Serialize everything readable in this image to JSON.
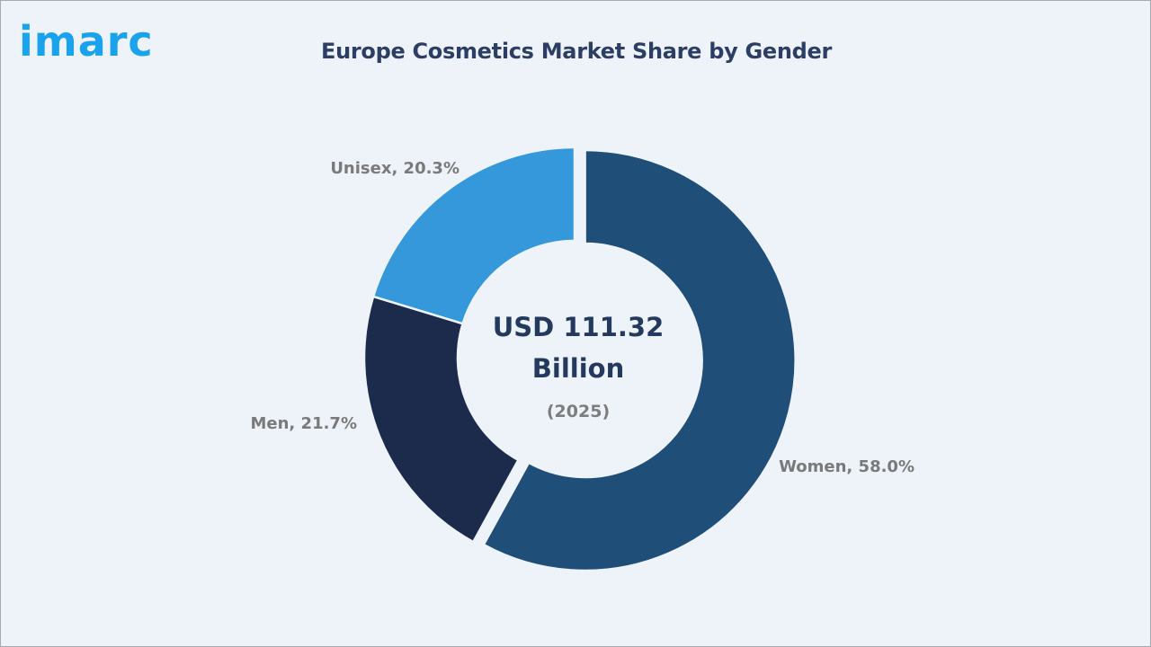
{
  "brand": {
    "logo_text": "imarc",
    "logo_color": "#1aa3ec"
  },
  "chart_data": {
    "type": "pie",
    "subtype": "donut",
    "title": "Europe Cosmetics Market Share by Gender",
    "categories": [
      "Women",
      "Men",
      "Unisex"
    ],
    "values": [
      58.0,
      21.7,
      20.3
    ],
    "unit": "%",
    "colors": [
      "#1f4e79",
      "#1c2b4c",
      "#3498db"
    ],
    "labels": [
      "Women, 58.0%",
      "Men, 21.7%",
      "Unisex, 20.3%"
    ],
    "exploded": [
      "Women"
    ],
    "center_text": {
      "line1": "USD 111.32",
      "line2": "Billion",
      "line3": "(2025)"
    },
    "legend": "none"
  }
}
